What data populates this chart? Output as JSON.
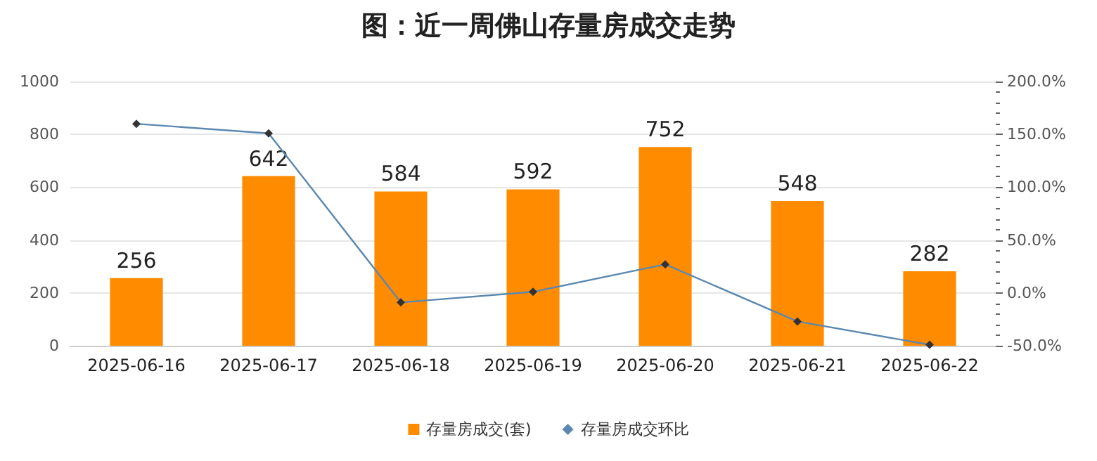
{
  "chart_data": {
    "type": "bar",
    "title": "图：近一周佛山存量房成交走势",
    "categories": [
      "2025-06-16",
      "2025-06-17",
      "2025-06-18",
      "2025-06-19",
      "2025-06-20",
      "2025-06-21",
      "2025-06-22"
    ],
    "series": [
      {
        "name": "存量房成交(套)",
        "color": "#ff8c00",
        "values": [
          256,
          642,
          584,
          592,
          752,
          548,
          282
        ],
        "value_labels": [
          "256",
          "642",
          "584",
          "592",
          "752",
          "548",
          "282"
        ]
      },
      {
        "name": "存量房成交环比",
        "type": "line",
        "axis": "y2",
        "color": "#5b88b0",
        "marker": "diamond",
        "values": [
          160,
          151,
          -9,
          1,
          27,
          -27,
          -49
        ]
      }
    ],
    "ylim": [
      0,
      1000
    ],
    "yticks": [
      0,
      200,
      400,
      600,
      800,
      1000
    ],
    "y2lim": [
      -50,
      200
    ],
    "y2ticks": [
      {
        "value": -50,
        "label": "-50.0%"
      },
      {
        "value": 0,
        "label": "0.0%"
      },
      {
        "value": 50,
        "label": "50.0%"
      },
      {
        "value": 100,
        "label": "100.0%"
      },
      {
        "value": 150,
        "label": "150.0%"
      },
      {
        "value": 200,
        "label": "200.0%"
      }
    ],
    "grid": "y",
    "legend": "bottom"
  }
}
